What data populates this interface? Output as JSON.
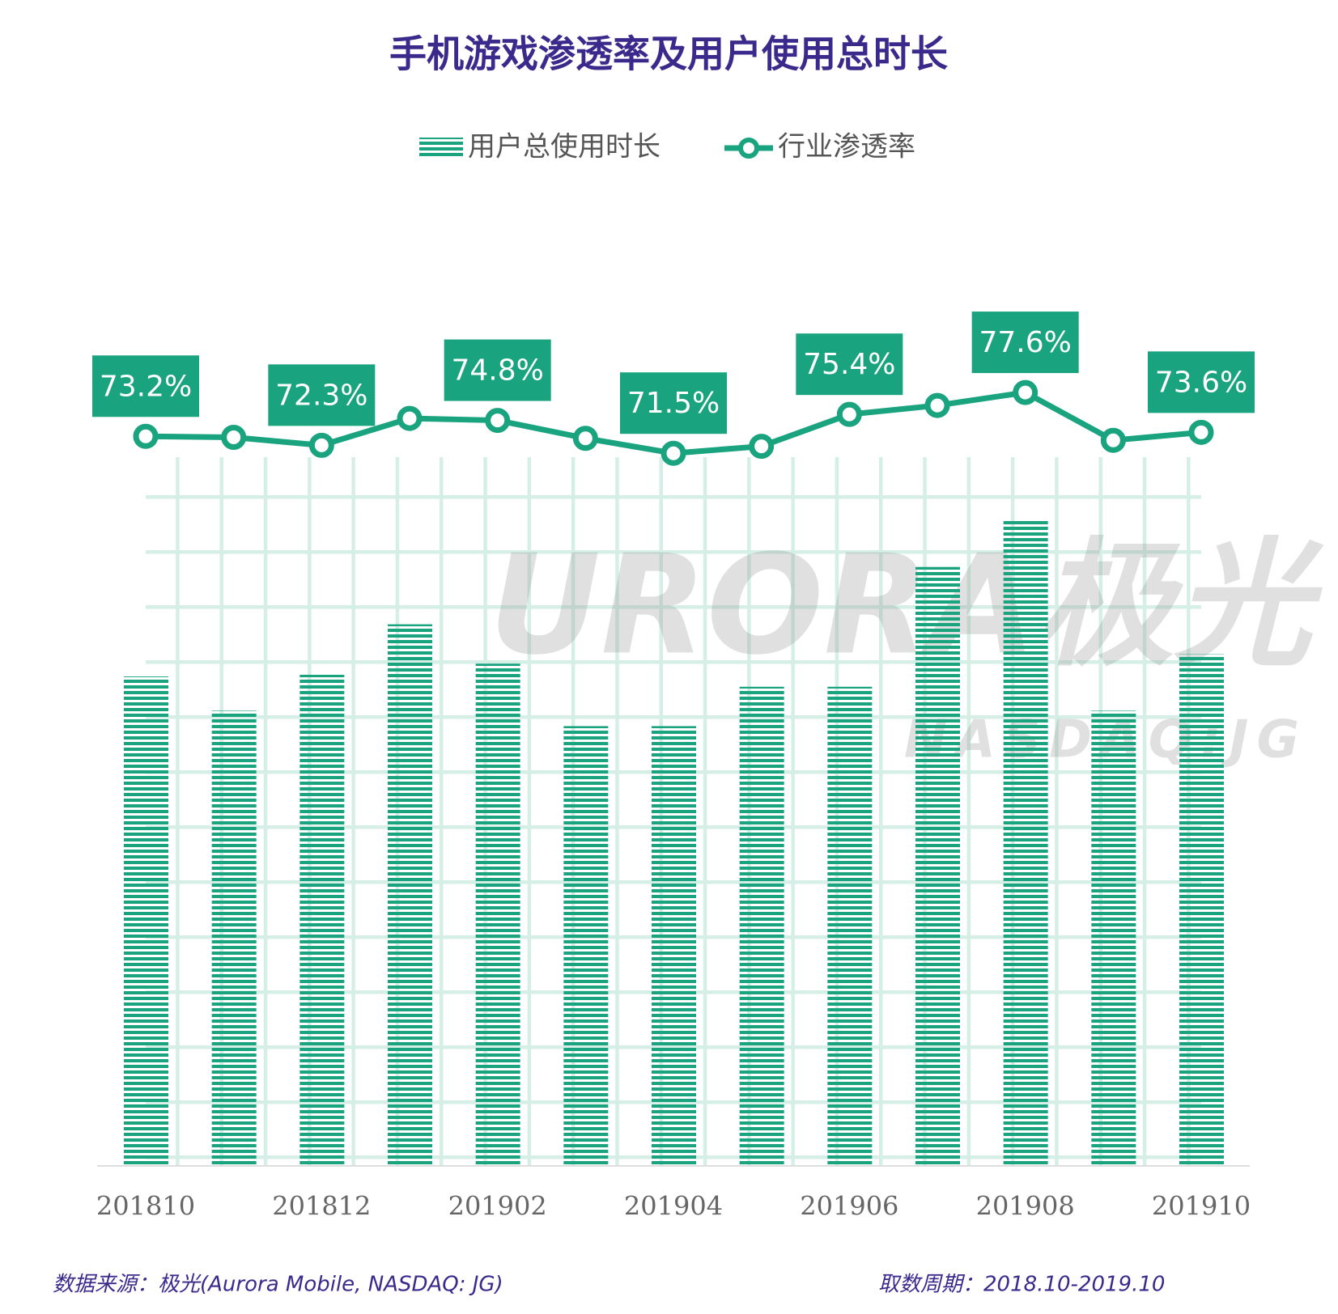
{
  "chart_data": {
    "type": "bar-line",
    "title": "手机游戏渗透率及用户使用总时长",
    "categories": [
      "201810",
      null,
      "201812",
      null,
      "201902",
      null,
      "201904",
      null,
      "201906",
      null,
      "201908",
      null,
      "201910"
    ],
    "series": [
      {
        "name": "用户总使用时长",
        "type": "bar",
        "color": "#1aa37f",
        "values": [
          57.2,
          53.2,
          57.4,
          63.3,
          58.7,
          51.4,
          51.4,
          56.0,
          56.0,
          70.0,
          75.4,
          53.2,
          59.8
        ]
      },
      {
        "name": "行业渗透率",
        "type": "line",
        "axis": "y2",
        "color": "#1aa37f",
        "values": [
          73.2,
          73.1,
          72.3,
          75.0,
          74.8,
          73.0,
          71.5,
          72.2,
          75.4,
          76.3,
          77.6,
          72.8,
          73.6
        ],
        "value_labels": [
          "73.2%",
          null,
          "72.3%",
          null,
          "74.8%",
          null,
          "71.5%",
          null,
          "75.4%",
          null,
          "77.6%",
          null,
          "73.6%"
        ]
      }
    ],
    "ylim": [
      0,
      106
    ],
    "y2lim": [
      0,
      91
    ],
    "legend": "top",
    "watermark": [
      "URORA极光",
      "NASDAQ:JG"
    ],
    "source": "数据来源：极光(Aurora Mobile, NASDAQ: JG)",
    "period": "取数周期：2018.10-2019.10"
  }
}
